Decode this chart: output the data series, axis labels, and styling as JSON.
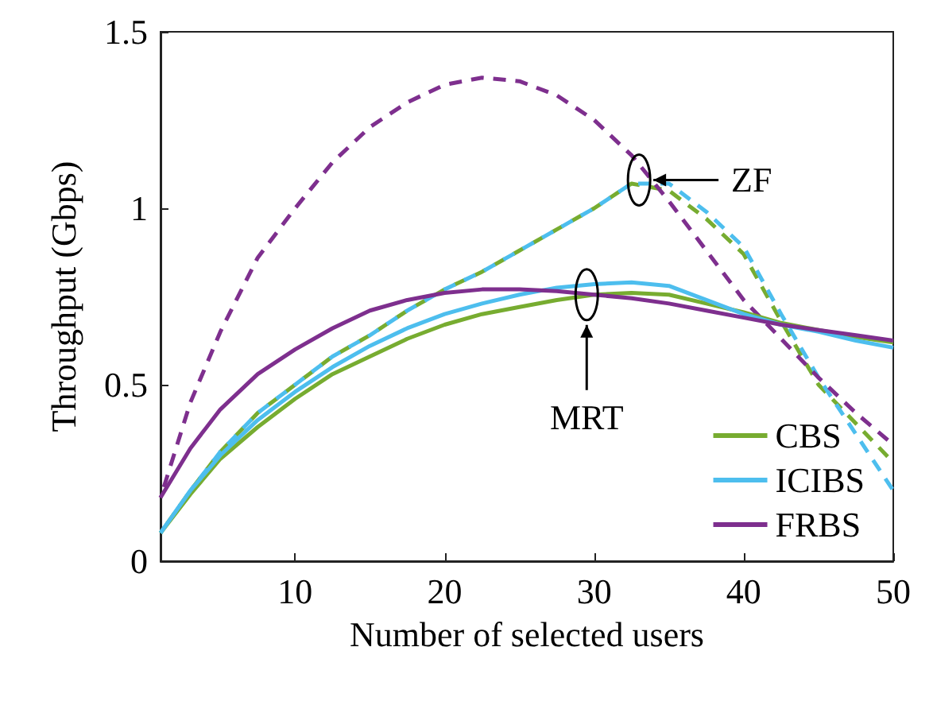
{
  "chart_data": {
    "type": "line",
    "xlabel": "Number of selected users",
    "ylabel": "Throughput (Gbps)",
    "x": [
      1,
      3,
      5,
      7.5,
      10,
      12.5,
      15,
      17.5,
      20,
      22.5,
      25,
      27.5,
      30,
      32.5,
      35,
      37.5,
      40,
      42.5,
      45,
      47.5,
      50
    ],
    "series": [
      {
        "name": "CBS",
        "color": "#77ac30",
        "line_style": "solid",
        "values": [
          0.08,
          0.19,
          0.29,
          0.38,
          0.46,
          0.53,
          0.58,
          0.63,
          0.67,
          0.7,
          0.72,
          0.74,
          0.755,
          0.76,
          0.755,
          0.73,
          0.705,
          0.675,
          0.655,
          0.635,
          0.62
        ]
      },
      {
        "name": "ICIBS",
        "color": "#4dbeee",
        "line_style": "solid",
        "values": [
          0.08,
          0.2,
          0.3,
          0.4,
          0.48,
          0.55,
          0.61,
          0.66,
          0.7,
          0.73,
          0.755,
          0.775,
          0.785,
          0.79,
          0.78,
          0.74,
          0.7,
          0.67,
          0.65,
          0.625,
          0.605
        ]
      },
      {
        "name": "FRBS",
        "color": "#7e2f8e",
        "line_style": "solid",
        "values": [
          0.18,
          0.32,
          0.43,
          0.53,
          0.6,
          0.66,
          0.71,
          0.74,
          0.76,
          0.77,
          0.77,
          0.765,
          0.755,
          0.745,
          0.73,
          0.71,
          0.69,
          0.67,
          0.655,
          0.64,
          0.625
        ]
      },
      {
        "color": "#77ac30",
        "line_style": "dashed",
        "values": [
          0.08,
          0.2,
          0.31,
          0.42,
          0.5,
          0.58,
          0.64,
          0.71,
          0.77,
          0.82,
          0.88,
          0.94,
          1.0,
          1.07,
          1.05,
          0.97,
          0.87,
          0.68,
          0.5,
          0.39,
          0.28
        ]
      },
      {
        "color": "#4dbeee",
        "line_style": "dashed",
        "values": [
          0.08,
          0.2,
          0.31,
          0.42,
          0.5,
          0.58,
          0.64,
          0.71,
          0.77,
          0.82,
          0.88,
          0.94,
          1.0,
          1.07,
          1.07,
          0.99,
          0.89,
          0.7,
          0.52,
          0.36,
          0.2
        ]
      },
      {
        "color": "#7e2f8e",
        "line_style": "dashed",
        "values": [
          0.18,
          0.45,
          0.65,
          0.86,
          1.0,
          1.13,
          1.23,
          1.3,
          1.35,
          1.37,
          1.36,
          1.32,
          1.25,
          1.15,
          1.02,
          0.88,
          0.74,
          0.63,
          0.52,
          0.42,
          0.33
        ]
      }
    ],
    "annotations": [
      {
        "text": "ZF",
        "x": 33,
        "y": 1.08
      },
      {
        "text": "MRT",
        "x": 29.5,
        "y": 0.755
      }
    ],
    "xlim": [
      1,
      50
    ],
    "xticks": [
      10,
      20,
      30,
      40,
      50
    ],
    "ylim": [
      0,
      1.5
    ],
    "yticks": [
      0,
      0.5,
      1,
      1.5
    ],
    "grid": false,
    "legend": "bottom right",
    "marker": "none"
  }
}
